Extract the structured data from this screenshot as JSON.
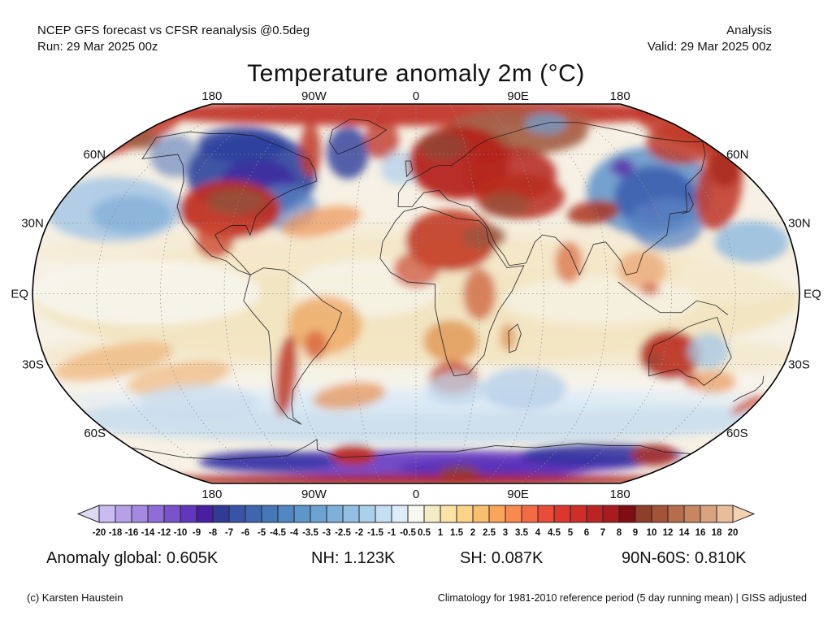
{
  "header": {
    "left_line1": "NCEP GFS forecast vs CFSR reanalysis @0.5deg",
    "left_line2": "Run: 29 Mar 2025 00z",
    "right_line1": "Analysis",
    "right_line2": "Valid: 29 Mar 2025 00z"
  },
  "title": "Temperature anomaly 2m (°C)",
  "map": {
    "top_lon_labels": [
      "180",
      "90W",
      "0",
      "90E",
      "180"
    ],
    "bottom_lon_labels": [
      "180",
      "90W",
      "0",
      "90E",
      "180"
    ],
    "left_lat_labels": [
      "60N",
      "30N",
      "EQ",
      "30S",
      "60S"
    ],
    "right_lat_labels": [
      "60N",
      "30N",
      "EQ",
      "30S",
      "60S"
    ],
    "base_color": "#f6f1e4",
    "field_blobs": [
      [
        512,
        370,
        470,
        78,
        0,
        "#f1e3bb",
        0.85
      ],
      [
        512,
        308,
        470,
        32,
        0,
        "#f5e9ce",
        0.6
      ],
      [
        512,
        438,
        470,
        35,
        0,
        "#f3e6c5",
        0.6
      ],
      [
        512,
        472,
        460,
        22,
        0,
        "#f7f5f0",
        0.7
      ],
      [
        512,
        516,
        440,
        30,
        0,
        "#cadeee",
        0.9
      ],
      [
        512,
        492,
        440,
        16,
        0,
        "#dfecf6",
        0.7
      ],
      [
        180,
        360,
        140,
        40,
        0,
        "#f7f6f1",
        0.8
      ],
      [
        450,
        355,
        90,
        35,
        0,
        "#f7f6f1",
        0.7
      ],
      [
        740,
        370,
        120,
        30,
        0,
        "#f7f6f1",
        0.6
      ],
      [
        905,
        345,
        75,
        28,
        0,
        "#f5efdd",
        0.5
      ],
      [
        512,
        139,
        345,
        16,
        0,
        "#c2372a",
        0.95
      ],
      [
        150,
        160,
        80,
        26,
        -18,
        "#c2372a",
        0.85
      ],
      [
        870,
        158,
        95,
        28,
        14,
        "#c2372a",
        0.85
      ],
      [
        635,
        163,
        88,
        28,
        0,
        "#a5624a",
        0.95
      ],
      [
        588,
        180,
        42,
        22,
        0,
        "#9a5a42",
        0.85
      ],
      [
        700,
        150,
        30,
        14,
        0,
        "#b5624a",
        0.7
      ],
      [
        672,
        152,
        26,
        13,
        0,
        "#6f9fd0",
        0.75
      ],
      [
        175,
        172,
        22,
        12,
        0,
        "#9a5c44",
        0.8
      ],
      [
        215,
        192,
        30,
        26,
        0,
        "#6d89c0",
        0.7
      ],
      [
        310,
        215,
        80,
        52,
        0,
        "#31479e",
        0.92
      ],
      [
        318,
        225,
        46,
        30,
        0,
        "#3d2b9e",
        0.85
      ],
      [
        298,
        178,
        55,
        22,
        0,
        "#2c3f9c",
        0.85
      ],
      [
        350,
        255,
        40,
        28,
        0,
        "#5b86c4",
        0.7
      ],
      [
        382,
        185,
        13,
        33,
        0,
        "#c0392b",
        0.85
      ],
      [
        428,
        188,
        26,
        32,
        0,
        "#35479e",
        0.85
      ],
      [
        470,
        172,
        21,
        24,
        0,
        "#c0392b",
        0.8
      ],
      [
        492,
        207,
        24,
        20,
        0,
        "#b8d2ea",
        0.8
      ],
      [
        140,
        258,
        85,
        40,
        0,
        "#abc9e4",
        0.9
      ],
      [
        162,
        264,
        50,
        24,
        0,
        "#85b0d8",
        0.8
      ],
      [
        283,
        258,
        62,
        36,
        0,
        "#bf2c20",
        0.92
      ],
      [
        290,
        248,
        36,
        16,
        0,
        "#96523a",
        0.9
      ],
      [
        264,
        296,
        24,
        22,
        0,
        "#cc4930",
        0.8
      ],
      [
        395,
        273,
        50,
        17,
        -12,
        "#ee9a5e",
        0.75
      ],
      [
        565,
        200,
        62,
        45,
        0,
        "#b5241e",
        0.95
      ],
      [
        545,
        180,
        30,
        17,
        0,
        "#8f4936",
        0.8
      ],
      [
        630,
        215,
        55,
        34,
        0,
        "#b5241e",
        0.85
      ],
      [
        640,
        242,
        55,
        28,
        0,
        "#b92c1f",
        0.85
      ],
      [
        622,
        252,
        30,
        15,
        0,
        "#96523a",
        0.8
      ],
      [
        555,
        296,
        56,
        38,
        0,
        "#c23a24",
        0.9
      ],
      [
        596,
        291,
        27,
        15,
        0,
        "#9a5540",
        0.8
      ],
      [
        512,
        332,
        28,
        22,
        0,
        "#cc4930",
        0.7
      ],
      [
        590,
        362,
        20,
        32,
        0,
        "#cc5530",
        0.7
      ],
      [
        800,
        236,
        78,
        55,
        0,
        "#6f9cce",
        0.95
      ],
      [
        806,
        242,
        50,
        38,
        0,
        "#3c5fae",
        0.88
      ],
      [
        766,
        206,
        14,
        11,
        0,
        "#5a2ea8",
        0.85
      ],
      [
        800,
        256,
        10,
        8,
        0,
        "#4d27a8",
        0.7
      ],
      [
        820,
        276,
        46,
        32,
        0,
        "#5b86c4",
        0.75
      ],
      [
        840,
        176,
        45,
        26,
        0,
        "#bf3a28",
        0.85
      ],
      [
        885,
        232,
        28,
        52,
        10,
        "#c0392b",
        0.88
      ],
      [
        892,
        206,
        20,
        24,
        0,
        "#a82818",
        0.8
      ],
      [
        925,
        298,
        46,
        26,
        0,
        "#93bcdf",
        0.85
      ],
      [
        730,
        262,
        32,
        15,
        -8,
        "#ab3520",
        0.85
      ],
      [
        700,
        323,
        17,
        26,
        0,
        "#d8693e",
        0.7
      ],
      [
        790,
        332,
        30,
        24,
        0,
        "#e8945c",
        0.6
      ],
      [
        800,
        356,
        12,
        8,
        0,
        "#cc4930",
        0.6
      ],
      [
        400,
        400,
        46,
        36,
        0,
        "#eda763",
        0.8
      ],
      [
        388,
        425,
        14,
        18,
        0,
        "#d55a35",
        0.7
      ],
      [
        352,
        462,
        13,
        50,
        6,
        "#c03a28",
        0.85
      ],
      [
        140,
        445,
        75,
        20,
        -12,
        "#f0b478",
        0.7
      ],
      [
        220,
        465,
        65,
        18,
        -10,
        "#eeae6e",
        0.6
      ],
      [
        245,
        495,
        75,
        22,
        0,
        "#c9dcee",
        0.75
      ],
      [
        430,
        487,
        45,
        16,
        -8,
        "#e89050",
        0.7
      ],
      [
        555,
        420,
        34,
        26,
        0,
        "#e09552",
        0.8
      ],
      [
        558,
        465,
        30,
        20,
        0,
        "#c74428",
        0.8
      ],
      [
        625,
        415,
        10,
        17,
        0,
        "#e0924e",
        0.7
      ],
      [
        645,
        478,
        52,
        26,
        0,
        "#b7d0e8",
        0.8
      ],
      [
        560,
        478,
        36,
        20,
        0,
        "#bfd6ec",
        0.75
      ],
      [
        825,
        437,
        38,
        30,
        0,
        "#b92c1f",
        0.9
      ],
      [
        805,
        443,
        9,
        7,
        0,
        "#8f4936",
        0.8
      ],
      [
        872,
        432,
        25,
        22,
        0,
        "#a8c8e4",
        0.8
      ],
      [
        852,
        468,
        11,
        9,
        0,
        "#c84a2e",
        0.7
      ],
      [
        920,
        498,
        23,
        6,
        -28,
        "#d0502c",
        0.9
      ],
      [
        878,
        470,
        28,
        14,
        0,
        "#e89050",
        0.65
      ],
      [
        520,
        570,
        275,
        16,
        0,
        "#6b40c4",
        0.95
      ],
      [
        610,
        576,
        120,
        12,
        0,
        "#5a30b8",
        0.9
      ],
      [
        330,
        568,
        85,
        13,
        0,
        "#3a3aa4",
        0.85
      ],
      [
        740,
        560,
        100,
        14,
        0,
        "#2e2f9c",
        0.85
      ],
      [
        435,
        560,
        28,
        13,
        0,
        "#bf2c20",
        0.9
      ],
      [
        805,
        560,
        28,
        14,
        0,
        "#b5301f",
        0.8
      ],
      [
        565,
        581,
        24,
        8,
        0,
        "#8f4936",
        0.8
      ],
      [
        512,
        591,
        345,
        7,
        0,
        "#a81a16",
        0.95
      ]
    ]
  },
  "colorbar": {
    "tick_labels": [
      "-20",
      "-18",
      "-16",
      "-14",
      "-12",
      "-10",
      "-9",
      "-8",
      "-7",
      "-6",
      "-5",
      "-4.5",
      "-4",
      "-3.5",
      "-3",
      "-2.5",
      "-2",
      "-1.5",
      "-1",
      "-0.5",
      "0.5",
      "1",
      "1.5",
      "2",
      "2.5",
      "3",
      "3.5",
      "4",
      "4.5",
      "5",
      "6",
      "7",
      "8",
      "9",
      "10",
      "12",
      "14",
      "16",
      "18",
      "20"
    ],
    "cell_colors": [
      "#c9bcf0",
      "#b6a1e8",
      "#a589e0",
      "#8f6cd6",
      "#7a52cb",
      "#6137bf",
      "#471fa0",
      "#313b95",
      "#3a53a4",
      "#3f66ad",
      "#4677b6",
      "#4f88c2",
      "#5c96ca",
      "#6ba3d2",
      "#7db1da",
      "#93c0e2",
      "#abd0ea",
      "#c5def1",
      "#ddedf8",
      "#f7f6f1",
      "#f2edc3",
      "#fbe3a6",
      "#fcd488",
      "#fbbd6e",
      "#faa55c",
      "#f88a50",
      "#f26b45",
      "#e94c38",
      "#dc372c",
      "#cf2d27",
      "#bc2423",
      "#a81b1e",
      "#800d12",
      "#8e3e2a",
      "#a25338",
      "#b56d4c",
      "#c7865f",
      "#d9a37d",
      "#e9bd99"
    ],
    "arrow_left_color": "#ded9f2",
    "arrow_right_color": "#f3d2b2",
    "border_color": "#222222"
  },
  "stats": {
    "items": [
      {
        "text": "Anomaly global: 0.605K"
      },
      {
        "text": "NH: 1.123K"
      },
      {
        "text": "SH: 0.087K"
      },
      {
        "text": "90N-60S: 0.810K"
      }
    ]
  },
  "footer": {
    "left": "(c) Karsten Haustein",
    "right": "Climatology for 1981-2010 reference period (5 day running mean) | GISS adjusted"
  },
  "chart_data": {
    "type": "heatmap",
    "title": "Temperature anomaly 2m (°C)",
    "subtitle": "NCEP GFS forecast vs CFSR reanalysis @0.5deg — Analysis, Run/Valid 29 Mar 2025 00z",
    "units": "°C (anomaly vs 1981-2010 climatology, 5 day running mean, GISS adjusted)",
    "projection": "robinson",
    "grid": "dotted graticule every 30° latitude/longitude",
    "xlabel_ticks": [
      "180",
      "90W",
      "0",
      "90E",
      "180"
    ],
    "ylabel_ticks": [
      "60N",
      "30N",
      "EQ",
      "30S",
      "60S"
    ],
    "colorbar_levels": [
      -20,
      -18,
      -16,
      -14,
      -12,
      -10,
      -9,
      -8,
      -7,
      -6,
      -5,
      -4.5,
      -4,
      -3.5,
      -3,
      -2.5,
      -2,
      -1.5,
      -1,
      -0.5,
      0.5,
      1,
      1.5,
      2,
      2.5,
      3,
      3.5,
      4,
      4.5,
      5,
      6,
      7,
      8,
      9,
      10,
      12,
      14,
      16,
      18,
      20
    ],
    "legend_position": "bottom",
    "stats": {
      "anomaly_global_K": 0.605,
      "NH_K": 1.123,
      "SH_K": 0.087,
      "band_90N_60S_K": 0.81
    },
    "features": [
      {
        "region": "Arctic cap / northern Russia",
        "anomaly_C": "+10 to +18 (warm, brown shades)"
      },
      {
        "region": "Europe / Scandinavia / western Russia",
        "anomaly_C": "+6 to +14 (strong warm)"
      },
      {
        "region": "Central & eastern United States",
        "anomaly_C": "+8 to +14 (strong warm, brown core)"
      },
      {
        "region": "Central Canada / Hudson Bay",
        "anomaly_C": "-8 to -14 (strong cold)"
      },
      {
        "region": "Central Siberia / Mongolia / China",
        "anomaly_C": "-6 to -12 with spots below -14"
      },
      {
        "region": "Gulf of Alaska / NE Pacific",
        "anomaly_C": "-2 to -5 (cool ocean)"
      },
      {
        "region": "Sahara / Middle East",
        "anomaly_C": "+4 to +10"
      },
      {
        "region": "NW Pacific east of Japan",
        "anomaly_C": "+3 to +7"
      },
      {
        "region": "Western Australia",
        "anomaly_C": "+4 to +8"
      },
      {
        "region": "Eastern Australia",
        "anomaly_C": "-1 to -3"
      },
      {
        "region": "Argentina / Andes",
        "anomaly_C": "+4 to +8"
      },
      {
        "region": "New Zealand",
        "anomaly_C": "+3 to +6"
      },
      {
        "region": "Southern Ocean 50S-65S",
        "anomaly_C": "-1 to -3 (broad cool band)"
      },
      {
        "region": "Antarctic coast",
        "anomaly_C": "-10 to -20 (purple) with warm pockets"
      },
      {
        "region": "Antarctic interior (map edge)",
        "anomaly_C": "+8 to +16 (warm band)"
      }
    ]
  }
}
